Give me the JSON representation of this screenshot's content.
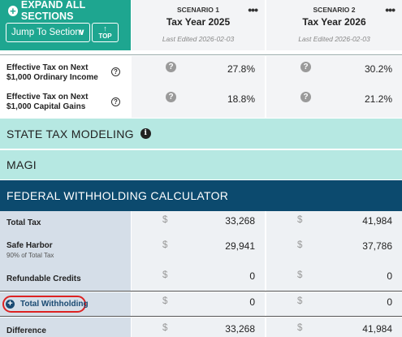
{
  "header": {
    "expand_label": "EXPAND ALL SECTIONS",
    "jump_label": "Jump To Section",
    "top_label": "TOP",
    "scenarios": [
      {
        "label": "SCENARIO 1",
        "year": "Tax Year 2025",
        "edited": "Last Edited 2026-02-03"
      },
      {
        "label": "SCENARIO 2",
        "year": "Tax Year 2026",
        "edited": "Last Edited 2026-02-03"
      }
    ]
  },
  "effective_rows": [
    {
      "label": "Effective Tax on Next $1,000 Ordinary Income",
      "s1": "27.8%",
      "s2": "30.2%"
    },
    {
      "label": "Effective Tax on Next $1,000 Capital Gains",
      "s1": "18.8%",
      "s2": "21.2%"
    }
  ],
  "sections": {
    "state": "STATE TAX MODELING",
    "magi": "MAGI",
    "federal": "FEDERAL WITHHOLDING CALCULATOR"
  },
  "federal_rows": [
    {
      "label": "Total Tax",
      "sub": "",
      "s1": "33,268",
      "s2": "41,984"
    },
    {
      "label": "Safe Harbor",
      "sub": "90% of Total Tax",
      "s1": "29,941",
      "s2": "37,786"
    },
    {
      "label": "Refundable Credits",
      "sub": "",
      "s1": "0",
      "s2": "0"
    },
    {
      "label": "Total Withholding",
      "sub": "",
      "s1": "0",
      "s2": "0"
    },
    {
      "label": "Difference",
      "sub": "",
      "s1": "33,268",
      "s2": "41,984"
    }
  ],
  "currency_symbol": "$",
  "colors": {
    "teal": "#1ea690",
    "light_teal": "#b6e8e2",
    "navy": "#0c4a6e",
    "grey_label": "#d5dee8",
    "grey_value": "#eef1f4",
    "highlight": "#dd2222"
  }
}
